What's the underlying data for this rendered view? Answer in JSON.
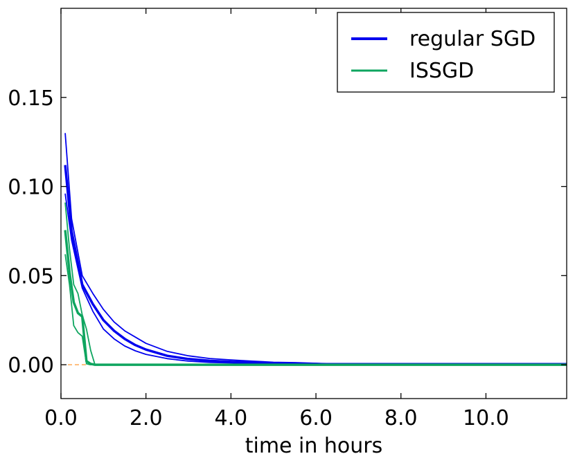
{
  "chart_data": {
    "type": "line",
    "title": "",
    "xlabel": "time in hours",
    "ylabel": "",
    "xlim": [
      0.0,
      11.9
    ],
    "ylim": [
      -0.019,
      0.2
    ],
    "xticks": [
      {
        "value": 0.0,
        "label": "0.0"
      },
      {
        "value": 2.0,
        "label": "2.0"
      },
      {
        "value": 4.0,
        "label": "4.0"
      },
      {
        "value": 6.0,
        "label": "6.0"
      },
      {
        "value": 8.0,
        "label": "8.0"
      },
      {
        "value": 10.0,
        "label": "10.0"
      }
    ],
    "yticks": [
      {
        "value": 0.0,
        "label": "0.00"
      },
      {
        "value": 0.05,
        "label": "0.05"
      },
      {
        "value": 0.1,
        "label": "0.10"
      },
      {
        "value": 0.15,
        "label": "0.15"
      }
    ],
    "grid": false,
    "legend": {
      "position": "top-right",
      "entries": [
        {
          "label": "regular SGD",
          "color": "#0000ee"
        },
        {
          "label": "ISSGD",
          "color": "#0ea55f"
        }
      ]
    },
    "reference_line": {
      "y": 0.0,
      "color": "#ff8c1a",
      "style": "dashed"
    },
    "series": [
      {
        "group": "regular SGD",
        "role": "mean",
        "color": "#0000ee",
        "x": [
          0.1,
          0.25,
          0.5,
          0.75,
          1.0,
          1.25,
          1.5,
          1.75,
          2.0,
          2.5,
          3.0,
          3.5,
          4.0,
          4.5,
          5.0,
          5.5,
          6.0,
          6.25,
          11.9
        ],
        "y": [
          0.112,
          0.075,
          0.045,
          0.034,
          0.025,
          0.019,
          0.0145,
          0.011,
          0.0085,
          0.005,
          0.0032,
          0.0022,
          0.0016,
          0.0012,
          0.0009,
          0.0006,
          0.0004,
          0.0003,
          0.0003
        ]
      },
      {
        "group": "regular SGD",
        "role": "upper",
        "color": "#0000ee",
        "x": [
          0.1,
          0.25,
          0.5,
          0.75,
          1.0,
          1.25,
          1.5,
          1.75,
          2.0,
          2.5,
          3.0,
          3.5,
          4.0,
          4.5,
          5.0,
          5.5,
          6.0,
          6.25,
          11.9
        ],
        "y": [
          0.13,
          0.082,
          0.05,
          0.04,
          0.031,
          0.024,
          0.019,
          0.0155,
          0.012,
          0.0075,
          0.005,
          0.0035,
          0.0027,
          0.002,
          0.0014,
          0.0012,
          0.0008,
          0.0005,
          0.0005
        ]
      },
      {
        "group": "regular SGD",
        "role": "lower",
        "color": "#0000ee",
        "x": [
          0.1,
          0.25,
          0.5,
          0.75,
          1.0,
          1.25,
          1.5,
          1.75,
          2.0,
          2.5,
          3.0,
          3.5,
          4.0,
          4.5,
          5.0,
          5.5,
          6.0,
          6.25,
          11.9
        ],
        "y": [
          0.096,
          0.07,
          0.043,
          0.03,
          0.02,
          0.0145,
          0.0105,
          0.0078,
          0.0058,
          0.0034,
          0.002,
          0.0013,
          0.001,
          0.0007,
          0.0005,
          0.0003,
          0.0002,
          0.0001,
          0.0001
        ]
      },
      {
        "group": "ISSGD",
        "role": "mean",
        "color": "#0ea55f",
        "x": [
          0.1,
          0.2,
          0.3,
          0.4,
          0.5,
          0.6,
          0.7,
          0.8,
          1.0,
          2.0,
          4.0,
          6.0,
          8.0,
          10.0,
          11.9
        ],
        "y": [
          0.0755,
          0.052,
          0.035,
          0.029,
          0.027,
          0.002,
          0.0005,
          0.0,
          0.0,
          0.0,
          0.0,
          0.0,
          0.0,
          0.0,
          0.0
        ]
      },
      {
        "group": "ISSGD",
        "role": "upper",
        "color": "#0ea55f",
        "x": [
          0.1,
          0.2,
          0.3,
          0.4,
          0.5,
          0.6,
          0.7,
          0.8,
          1.0,
          2.0,
          4.0,
          6.0,
          8.0,
          10.0,
          11.9
        ],
        "y": [
          0.091,
          0.065,
          0.045,
          0.04,
          0.028,
          0.02,
          0.008,
          0.0,
          0.0,
          0.0,
          0.0,
          0.0,
          0.0,
          0.0,
          0.0
        ]
      },
      {
        "group": "ISSGD",
        "role": "lower",
        "color": "#0ea55f",
        "x": [
          0.1,
          0.2,
          0.3,
          0.4,
          0.5,
          0.6,
          0.7,
          0.8,
          1.0,
          2.0,
          4.0,
          6.0,
          8.0,
          10.0,
          11.9
        ],
        "y": [
          0.062,
          0.045,
          0.022,
          0.018,
          0.016,
          0.0005,
          0.0,
          0.0,
          0.0,
          0.0,
          0.0,
          0.0,
          0.0,
          0.0,
          0.0
        ]
      }
    ]
  }
}
